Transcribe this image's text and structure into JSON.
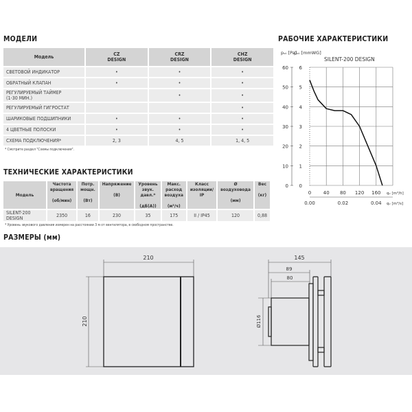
{
  "models": {
    "title": "МОДЕЛИ",
    "header": [
      "Модель",
      "CZ\nDESIGN",
      "CRZ\nDESIGN",
      "CHZ\nDESIGN"
    ],
    "rows": [
      {
        "label": "СВЕТОВОЙ ИНДИКАТОР",
        "cells": [
          "•",
          "•",
          "•"
        ]
      },
      {
        "label": "ОБРАТНЫЙ КЛАПАН",
        "cells": [
          "•",
          "•",
          "•"
        ]
      },
      {
        "label": "РЕГУЛИРУЕМЫЙ ТАЙМЕР (1-30 МИН.)",
        "cells": [
          "",
          "•",
          "•"
        ]
      },
      {
        "label": "РЕГУЛИРУЕМЫЙ ГИГРОСТАТ",
        "cells": [
          "",
          "",
          "•"
        ]
      },
      {
        "label": "ШАРИКОВЫЕ ПОДШИПНИКИ",
        "cells": [
          "•",
          "•",
          "•"
        ]
      },
      {
        "label": "4 ЦВЕТНЫЕ ПОЛОСКИ",
        "cells": [
          "•",
          "•",
          "•"
        ]
      },
      {
        "label": "СХЕМА ПОДКЛЮЧЕНИЯ*",
        "cells": [
          "2, 3",
          "4, 5",
          "1, 4, 5"
        ]
      }
    ],
    "footnote": "* Смотрите раздел \"Схемы подключения\"."
  },
  "tech": {
    "title": "ТЕХНИЧЕСКИЕ ХАРАКТЕРИСТИКИ",
    "header": [
      "Модель",
      "Частота вращения",
      "Потр. мощн.",
      "Напряжение",
      "Уровень звук. давл.*",
      "Макс. расход воздуха",
      "Класс изоляции/ IP",
      "Ø воздуховода",
      "Вес"
    ],
    "units": [
      "",
      "(об/мин)",
      "(Вт)",
      "(В)",
      "(дБ(А))",
      "(м³/ч)",
      "",
      "(мм)",
      "(кг)"
    ],
    "row": [
      "SILENT-200 DESIGN",
      "2350",
      "16",
      "230",
      "35",
      "175",
      "II / IP45",
      "120",
      "0,88"
    ],
    "footnote": "* Уровень звукового давления измерен на расстоянии 3 м от вентилятора, в свободном пространстве."
  },
  "dimensions": {
    "title": "РАЗМЕРЫ (мм)",
    "front_width": "210",
    "front_height": "210",
    "side_depth": "145",
    "side_89": "89",
    "side_80": "80",
    "side_diameter": "Ø116"
  },
  "chart_data": {
    "type": "line",
    "title": "РАБОЧИЕ ХАРАКТЕРИСТИКИ",
    "subtitle": "SILENT-200 DESIGN",
    "ylabel_left": "pₛₜ [Pa]",
    "ylabel_right": "pₛₜ [mmWG]",
    "xlabel": "qᵥ [m³/h]",
    "xlabel2": "qᵥ [m³/s]",
    "y_pa_ticks": [
      "60",
      "50",
      "40",
      "30",
      "20",
      "10",
      "0"
    ],
    "y_mm_ticks": [
      "6",
      "5",
      "4",
      "3",
      "2",
      "1",
      "0"
    ],
    "x_ticks": [
      "0",
      "40",
      "80",
      "120",
      "160"
    ],
    "x2_ticks": [
      "0.00",
      "0.02",
      "0.04"
    ],
    "xlim": [
      0,
      200
    ],
    "ylim": [
      0,
      6
    ],
    "grid": true,
    "series": [
      {
        "x": [
          0,
          10,
          20,
          40,
          60,
          80,
          100,
          120,
          140,
          160,
          175
        ],
        "y": [
          5.35,
          4.8,
          4.35,
          3.9,
          3.8,
          3.8,
          3.6,
          3.0,
          2.0,
          1.0,
          0
        ]
      }
    ]
  }
}
